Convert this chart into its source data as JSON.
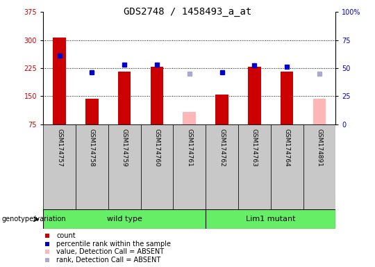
{
  "title": "GDS2748 / 1458493_a_at",
  "samples": [
    "GSM174757",
    "GSM174758",
    "GSM174759",
    "GSM174760",
    "GSM174761",
    "GSM174762",
    "GSM174763",
    "GSM174764",
    "GSM174891"
  ],
  "count_values": [
    307,
    143,
    215,
    228,
    null,
    155,
    228,
    215,
    null
  ],
  "count_absent": [
    null,
    null,
    null,
    null,
    108,
    null,
    null,
    null,
    143
  ],
  "rank_values": [
    258,
    213,
    235,
    235,
    null,
    213,
    233,
    228,
    null
  ],
  "rank_absent": [
    null,
    null,
    null,
    null,
    210,
    null,
    null,
    null,
    210
  ],
  "ylim_left": [
    75,
    375
  ],
  "ylim_right": [
    0,
    100
  ],
  "yticks_left": [
    75,
    150,
    225,
    300,
    375
  ],
  "yticks_right": [
    0,
    25,
    50,
    75,
    100
  ],
  "ytick_labels_right": [
    "0",
    "25",
    "50",
    "75",
    "100%"
  ],
  "grid_lines": [
    150,
    225,
    300
  ],
  "n_wild": 5,
  "n_mutant": 4,
  "wild_type_label": "wild type",
  "mutant_label": "Lim1 mutant",
  "genotype_label": "genotype/variation",
  "bar_color": "#cc0000",
  "bar_absent_color": "#ffb6b6",
  "dot_color": "#0000cc",
  "dot_absent_color": "#aaaacc",
  "group_bg_color": "#c8c8c8",
  "wild_type_bg": "#66ee66",
  "mutant_bg": "#66ee66",
  "title_fontsize": 10,
  "axis_fontsize": 7,
  "label_fontsize": 7,
  "legend_fontsize": 7,
  "bar_width": 0.4,
  "dot_size": 5,
  "left_axis_color": "#cc0000",
  "right_axis_color": "#0000cc"
}
